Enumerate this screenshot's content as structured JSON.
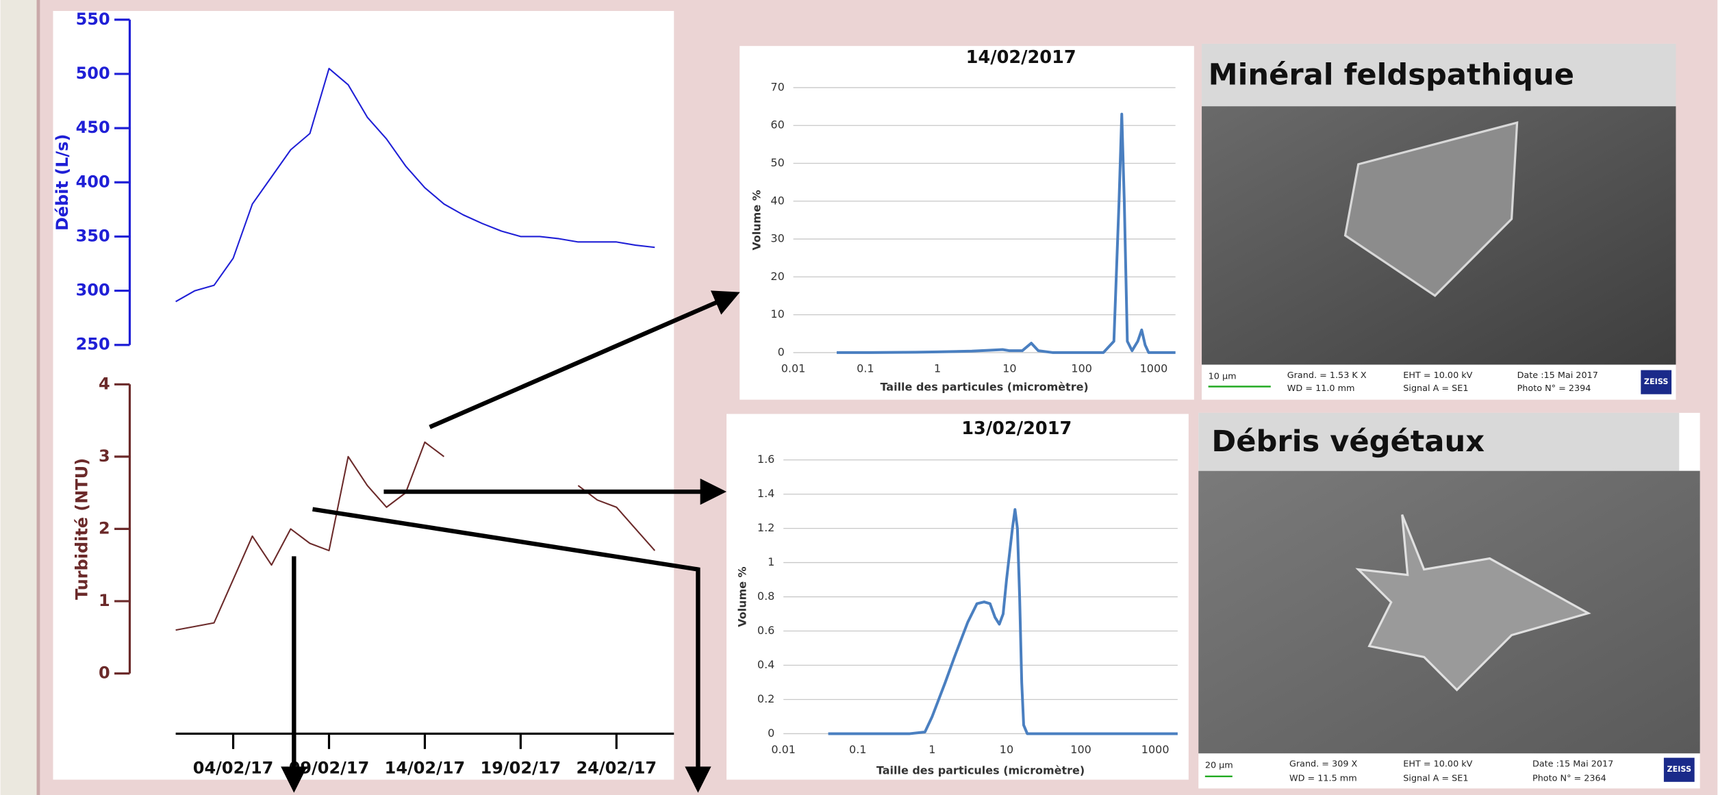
{
  "chart_data": [
    {
      "type": "line",
      "y_label": "Débit (L/s)",
      "color": "#1f1fd6",
      "grid": false,
      "x": [
        "01/02/17",
        "02/02/17",
        "03/02/17",
        "04/02/17",
        "05/02/17",
        "06/02/17",
        "07/02/17",
        "08/02/17",
        "09/02/17",
        "10/02/17",
        "11/02/17",
        "12/02/17",
        "13/02/17",
        "14/02/17",
        "15/02/17",
        "16/02/17",
        "17/02/17",
        "18/02/17",
        "19/02/17",
        "20/02/17",
        "21/02/17",
        "22/02/17",
        "23/02/17",
        "24/02/17",
        "25/02/17",
        "26/02/17"
      ],
      "values": [
        290,
        300,
        305,
        330,
        380,
        405,
        430,
        445,
        505,
        490,
        460,
        440,
        415,
        395,
        380,
        370,
        362,
        355,
        350,
        350,
        348,
        345,
        345,
        345,
        342,
        340
      ],
      "xlim": [
        "01/02/17",
        "27/02/17"
      ],
      "ylim": [
        250,
        550
      ],
      "yticks": [
        250,
        300,
        350,
        400,
        450,
        500,
        550
      ]
    },
    {
      "type": "line",
      "y_label": "Turbidité (NTU)",
      "color": "#6b2a2a",
      "grid": false,
      "x": [
        "01/02/17",
        "02/02/17",
        "03/02/17",
        "04/02/17",
        "05/02/17",
        "06/02/17",
        "07/02/17",
        "08/02/17",
        "09/02/17",
        "10/02/17",
        "11/02/17",
        "12/02/17",
        "13/02/17",
        "14/02/17",
        "15/02/17",
        "16/02/17",
        "17/02/17",
        "18/02/17",
        "19/02/17",
        "20/02/17",
        "21/02/17",
        "22/02/17",
        "23/02/17",
        "24/02/17",
        "25/02/17",
        "26/02/17"
      ],
      "values": [
        0.6,
        0.65,
        0.7,
        1.3,
        1.9,
        1.5,
        2.0,
        1.8,
        1.7,
        3.0,
        2.6,
        2.3,
        2.5,
        3.2,
        3.0,
        null,
        null,
        null,
        null,
        null,
        null,
        2.6,
        2.4,
        2.3,
        2.0,
        1.7
      ],
      "xlim": [
        "01/02/17",
        "27/02/17"
      ],
      "ylim": [
        0,
        4
      ],
      "yticks": [
        0,
        1,
        2,
        3,
        4
      ],
      "xticks": [
        "04/02/17",
        "09/02/17",
        "14/02/17",
        "19/02/17",
        "24/02/17"
      ]
    },
    {
      "type": "line",
      "title": "14/02/2017",
      "x_label": "Taille des particules (micromètre)",
      "y_label": "Volume %",
      "color": "#4a7fc0",
      "grid": true,
      "x_scale": "log",
      "x": [
        0.04,
        0.1,
        0.5,
        1,
        3,
        5,
        8,
        10,
        15,
        20,
        25,
        40,
        100,
        200,
        280,
        330,
        360,
        390,
        430,
        500,
        600,
        680,
        760,
        850,
        2000
      ],
      "values": [
        0,
        0,
        0.1,
        0.2,
        0.4,
        0.6,
        0.8,
        0.5,
        0.5,
        2.5,
        0.5,
        0,
        0,
        0,
        3,
        40,
        63,
        40,
        3,
        0.5,
        3,
        6,
        2,
        0,
        0
      ],
      "xlim": [
        0.01,
        2000
      ],
      "xticks": [
        0.01,
        0.1,
        1,
        10,
        100,
        1000
      ],
      "ylim": [
        0,
        70
      ],
      "yticks": [
        0,
        10,
        20,
        30,
        40,
        50,
        60,
        70
      ]
    },
    {
      "type": "line",
      "title": "13/02/2017",
      "x_label": "Taille des particules (micromètre)",
      "y_label": "Volume %",
      "color": "#4a7fc0",
      "grid": true,
      "x_scale": "log",
      "x": [
        0.04,
        0.5,
        0.8,
        1,
        1.5,
        2,
        3,
        4,
        5,
        6,
        7,
        8,
        9,
        10,
        12,
        13,
        14,
        15,
        16,
        17,
        19,
        100,
        2000
      ],
      "values": [
        0,
        0,
        0.01,
        0.1,
        0.3,
        0.45,
        0.65,
        0.76,
        0.77,
        0.76,
        0.68,
        0.64,
        0.7,
        0.9,
        1.2,
        1.31,
        1.2,
        0.8,
        0.3,
        0.05,
        0,
        0,
        0
      ],
      "xlim": [
        0.01,
        2000
      ],
      "xticks": [
        0.01,
        0.1,
        1,
        10,
        100,
        1000
      ],
      "ylim": [
        0,
        1.6
      ],
      "yticks": [
        0,
        0.2,
        0.4,
        0.6,
        0.8,
        1,
        1.2,
        1.4,
        1.6
      ]
    }
  ],
  "images": [
    {
      "title": "Minéral feldspathique",
      "scale_bar": "10 µm",
      "magnification": "Grand. =   1.53 K X",
      "wd": "WD = 11.0 mm",
      "eht": "EHT = 10.00 kV",
      "signal": "Signal A = SE1",
      "date": "Date :15 Mai 2017",
      "photo": "Photo N° = 2394",
      "brand": "ZEISS"
    },
    {
      "title": "Débris végétaux",
      "scale_bar": "20 µm",
      "magnification": "Grand. =    309 X",
      "wd": "WD = 11.5 mm",
      "eht": "EHT = 10.00 kV",
      "signal": "Signal A = SE1",
      "date": "Date :15 Mai 2017",
      "photo": "Photo N° = 2364",
      "brand": "ZEISS"
    }
  ]
}
